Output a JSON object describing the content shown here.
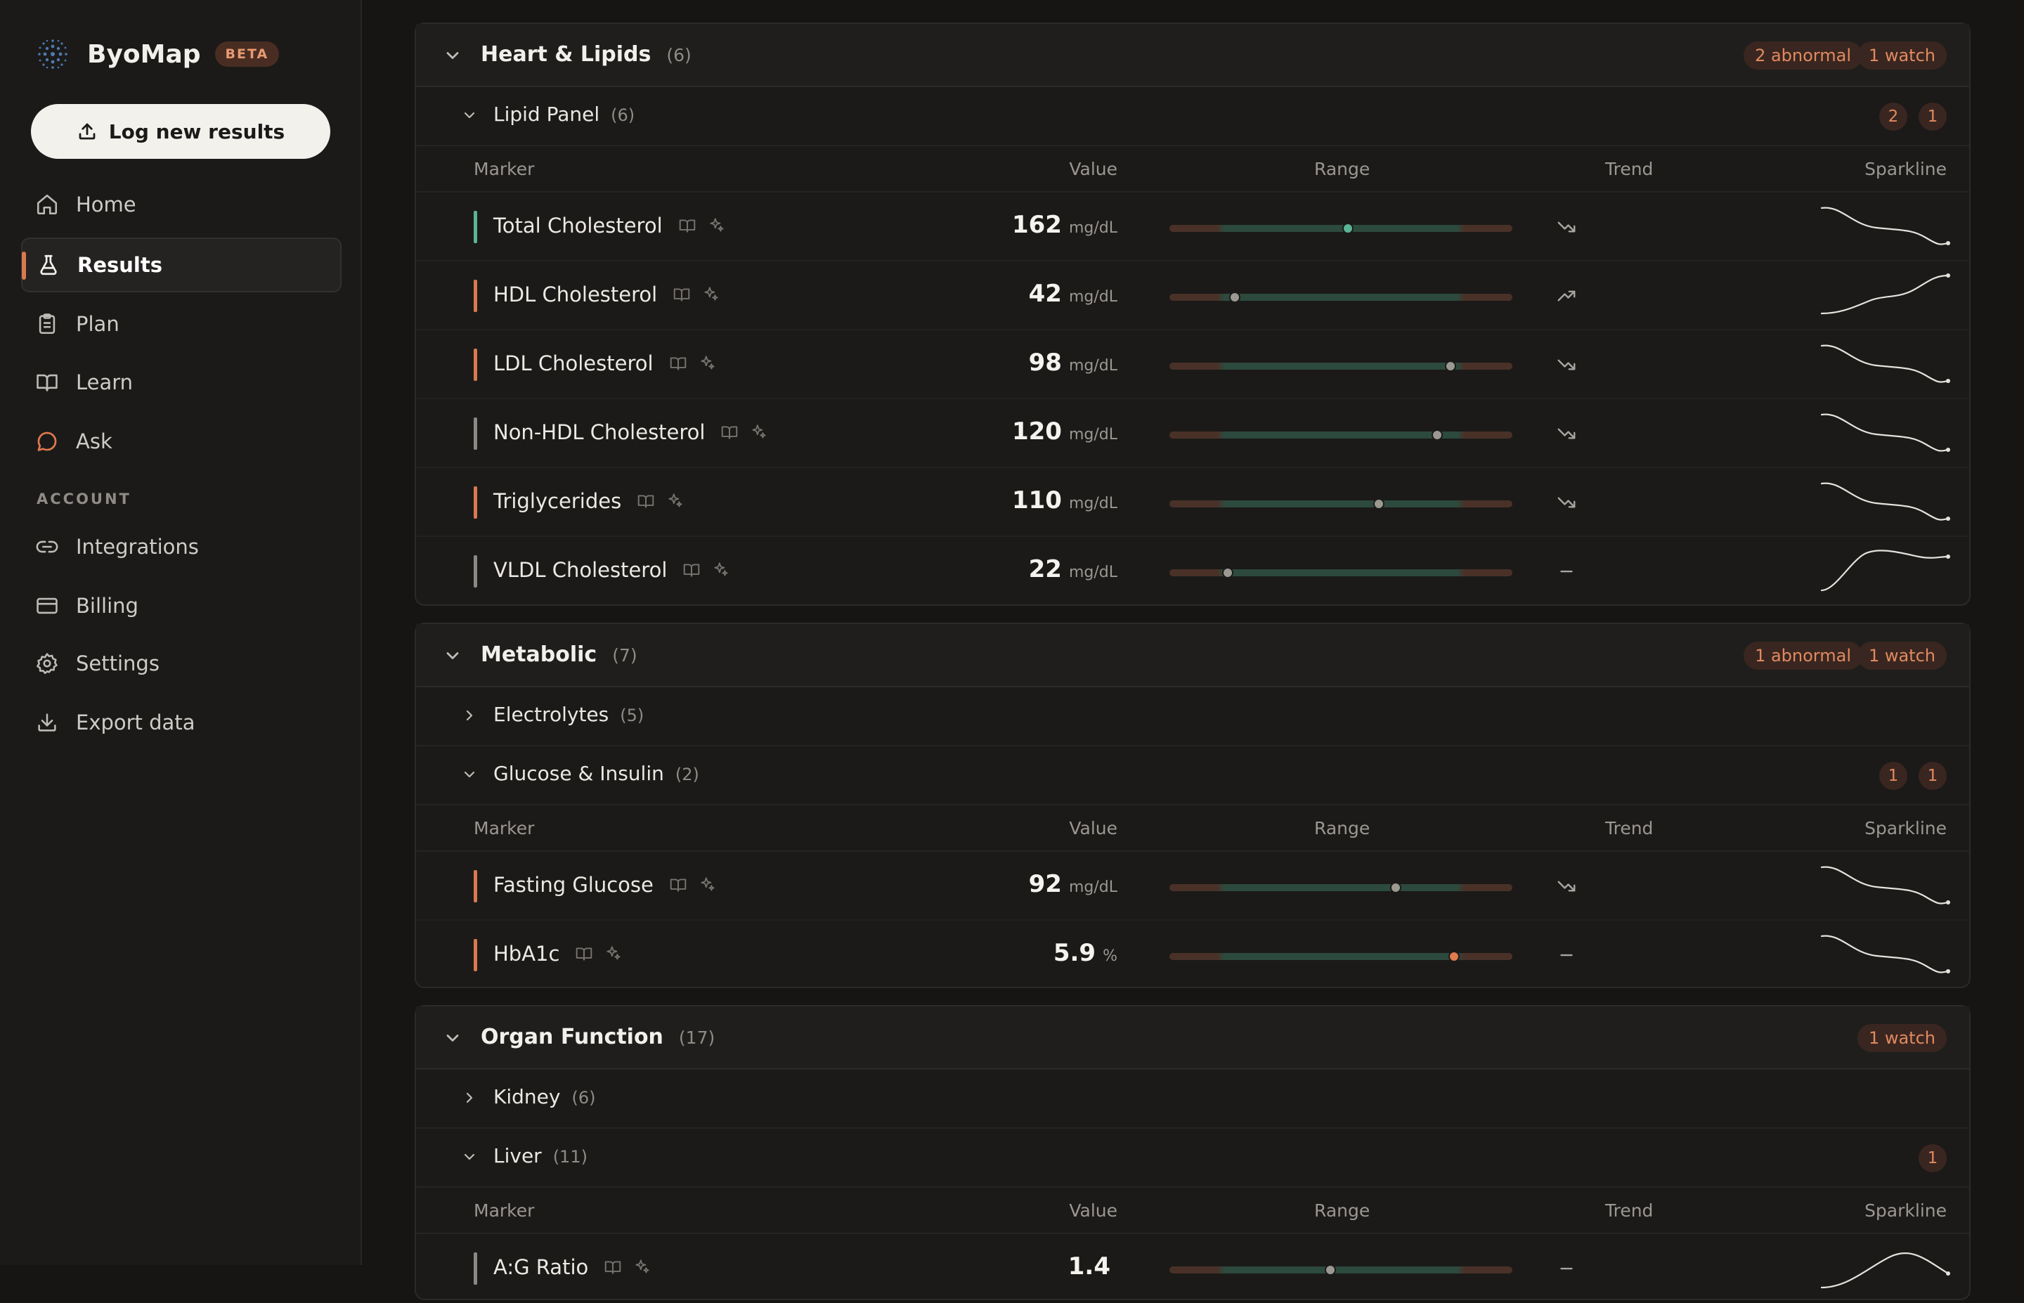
{
  "app": {
    "name": "ByoMap",
    "badge": "BETA"
  },
  "sidebar": {
    "log_button": "Log new results",
    "nav": [
      {
        "label": "Home",
        "icon": "home-icon"
      },
      {
        "label": "Results",
        "icon": "flask-icon",
        "active": true
      },
      {
        "label": "Plan",
        "icon": "clipboard-icon"
      },
      {
        "label": "Learn",
        "icon": "book-icon"
      },
      {
        "label": "Ask",
        "icon": "chat-bubble-icon"
      }
    ],
    "account_label": "ACCOUNT",
    "account_nav": [
      {
        "label": "Integrations",
        "icon": "link-icon"
      },
      {
        "label": "Billing",
        "icon": "credit-card-icon"
      },
      {
        "label": "Settings",
        "icon": "gear-icon"
      },
      {
        "label": "Export data",
        "icon": "download-icon"
      }
    ]
  },
  "columns": {
    "marker": "Marker",
    "value": "Value",
    "range": "Range",
    "trend": "Trend",
    "sparkline": "Sparkline"
  },
  "groups": [
    {
      "title": "Heart & Lipids",
      "count": "(6)",
      "abnormal": "2 abnormal",
      "watch": "1 watch",
      "panels": [
        {
          "title": "Lipid Panel",
          "count": "(6)",
          "expanded": true,
          "badges": [
            "2",
            "1"
          ],
          "markers": [
            {
              "name": "Total Cholesterol",
              "value": "162",
              "unit": "mg/dL",
              "status": "normal",
              "position": 0.52,
              "trend": "down",
              "spark": "down"
            },
            {
              "name": "HDL Cholesterol",
              "value": "42",
              "unit": "mg/dL",
              "status": "abnormal",
              "position": 0.19,
              "trend": "up",
              "spark": "up"
            },
            {
              "name": "LDL Cholesterol",
              "value": "98",
              "unit": "mg/dL",
              "status": "abnormal",
              "position": 0.82,
              "trend": "down",
              "spark": "down"
            },
            {
              "name": "Non-HDL Cholesterol",
              "value": "120",
              "unit": "mg/dL",
              "status": "neutral",
              "position": 0.78,
              "trend": "down",
              "spark": "down"
            },
            {
              "name": "Triglycerides",
              "value": "110",
              "unit": "mg/dL",
              "status": "abnormal",
              "position": 0.61,
              "trend": "down",
              "spark": "down"
            },
            {
              "name": "VLDL Cholesterol",
              "value": "22",
              "unit": "mg/dL",
              "status": "neutral",
              "position": 0.17,
              "trend": "flat",
              "spark": "rise-flat"
            }
          ]
        }
      ]
    },
    {
      "title": "Metabolic",
      "count": "(7)",
      "abnormal": "1 abnormal",
      "watch": "1 watch",
      "panels": [
        {
          "title": "Electrolytes",
          "count": "(5)",
          "expanded": false,
          "badges": []
        },
        {
          "title": "Glucose & Insulin",
          "count": "(2)",
          "expanded": true,
          "badges": [
            "1",
            "1"
          ],
          "markers": [
            {
              "name": "Fasting Glucose",
              "value": "92",
              "unit": "mg/dL",
              "status": "abnormal",
              "position": 0.66,
              "trend": "down",
              "spark": "down"
            },
            {
              "name": "HbA1c",
              "value": "5.9",
              "unit": "%",
              "status": "abnormal",
              "position": 0.83,
              "trend": "flat",
              "spark": "down",
              "dot_color": "#e07a4f"
            }
          ]
        }
      ]
    },
    {
      "title": "Organ Function",
      "count": "(17)",
      "abnormal": "",
      "watch": "1 watch",
      "panels": [
        {
          "title": "Kidney",
          "count": "(6)",
          "expanded": false,
          "badges": []
        },
        {
          "title": "Liver",
          "count": "(11)",
          "expanded": true,
          "badges": [
            "1"
          ],
          "markers": [
            {
              "name": "A:G Ratio",
              "value": "1.4",
              "unit": "",
              "status": "neutral",
              "position": 0.47,
              "trend": "flat",
              "spark": "hump"
            }
          ]
        }
      ]
    }
  ],
  "colors": {
    "accent": "#d9794f",
    "normal": "#5bb496",
    "abnormal": "#d9794f",
    "neutral": "#8c8984",
    "range_low": "#4a3128",
    "range_ok": "#2c4a3d"
  }
}
